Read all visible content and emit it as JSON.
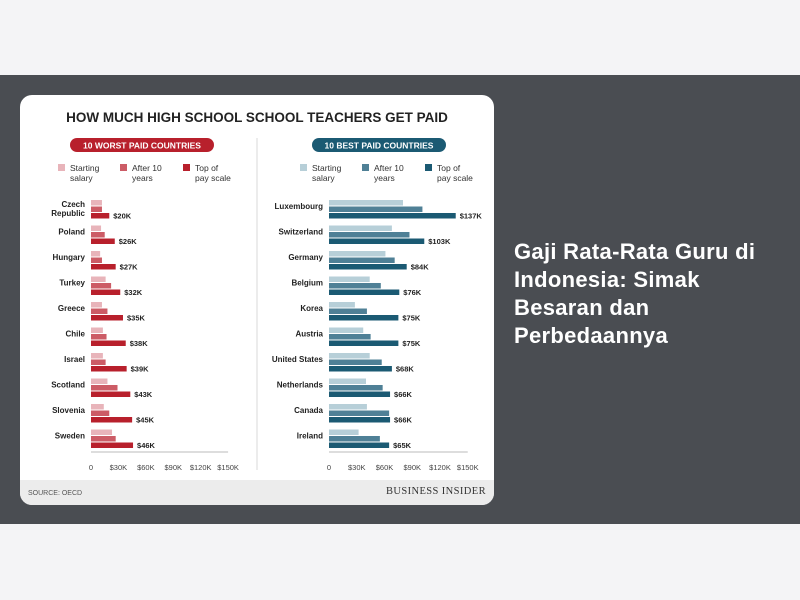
{
  "article": {
    "headline": "Gaji Rata-Rata Guru di Indonesia: Simak Besaran dan Perbedaannya"
  },
  "colors": {
    "band_bg": "#4a4d52",
    "worst_start": "#e8b4ba",
    "worst_mid": "#cc5c66",
    "worst_top": "#b8202c",
    "best_start": "#b7cfd8",
    "best_mid": "#4f8096",
    "best_top": "#1b5a73"
  },
  "chart_data": [
    {
      "type": "bar",
      "orientation": "horizontal",
      "title": "HOW MUCH HIGH SCHOOL SCHOOL TEACHERS GET PAID",
      "panel_title": "10 WORST PAID COUNTRIES",
      "categories": [
        "Czech Republic",
        "Poland",
        "Hungary",
        "Turkey",
        "Greece",
        "Chile",
        "Israel",
        "Scotland",
        "Slovenia",
        "Sweden"
      ],
      "series": [
        {
          "name": "Starting salary",
          "values": [
            12,
            11,
            10,
            16,
            12,
            13,
            13,
            18,
            14,
            23
          ]
        },
        {
          "name": "After 10 years",
          "values": [
            12,
            15,
            12,
            22,
            18,
            17,
            16,
            29,
            20,
            27
          ]
        },
        {
          "name": "Top of pay scale",
          "values": [
            20,
            26,
            27,
            32,
            35,
            38,
            39,
            43,
            45,
            46
          ]
        }
      ],
      "value_labels": [
        "$20K",
        "$26K",
        "$27K",
        "$32K",
        "$35K",
        "$38K",
        "$39K",
        "$43K",
        "$45K",
        "$46K"
      ],
      "x_ticks": [
        "0",
        "$30K",
        "$60K",
        "$90K",
        "$120K",
        "$150K"
      ],
      "xlim": [
        0,
        150
      ],
      "legend_position": "top"
    },
    {
      "type": "bar",
      "orientation": "horizontal",
      "panel_title": "10 BEST PAID COUNTRIES",
      "categories": [
        "Luxembourg",
        "Switzerland",
        "Germany",
        "Belgium",
        "Korea",
        "Austria",
        "United States",
        "Netherlands",
        "Canada",
        "Ireland"
      ],
      "series": [
        {
          "name": "Starting salary",
          "values": [
            80,
            68,
            61,
            44,
            28,
            37,
            44,
            40,
            41,
            32
          ]
        },
        {
          "name": "After 10 years",
          "values": [
            101,
            87,
            71,
            56,
            41,
            45,
            57,
            58,
            65,
            55
          ]
        },
        {
          "name": "Top of pay scale",
          "values": [
            137,
            103,
            84,
            76,
            75,
            75,
            68,
            66,
            66,
            65
          ]
        }
      ],
      "value_labels": [
        "$137K",
        "$103K",
        "$84K",
        "$76K",
        "$75K",
        "$75K",
        "$68K",
        "$66K",
        "$66K",
        "$65K"
      ],
      "x_ticks": [
        "0",
        "$30K",
        "$60K",
        "$90K",
        "$120K",
        "$150K"
      ],
      "xlim": [
        0,
        150
      ],
      "legend_position": "top"
    }
  ],
  "legend_labels": {
    "start": [
      "Starting",
      "salary"
    ],
    "mid": [
      "After 10",
      "years"
    ],
    "top": [
      "Top of",
      "pay scale"
    ]
  },
  "source": "SOURCE: OECD",
  "brand": "BUSINESS INSIDER"
}
